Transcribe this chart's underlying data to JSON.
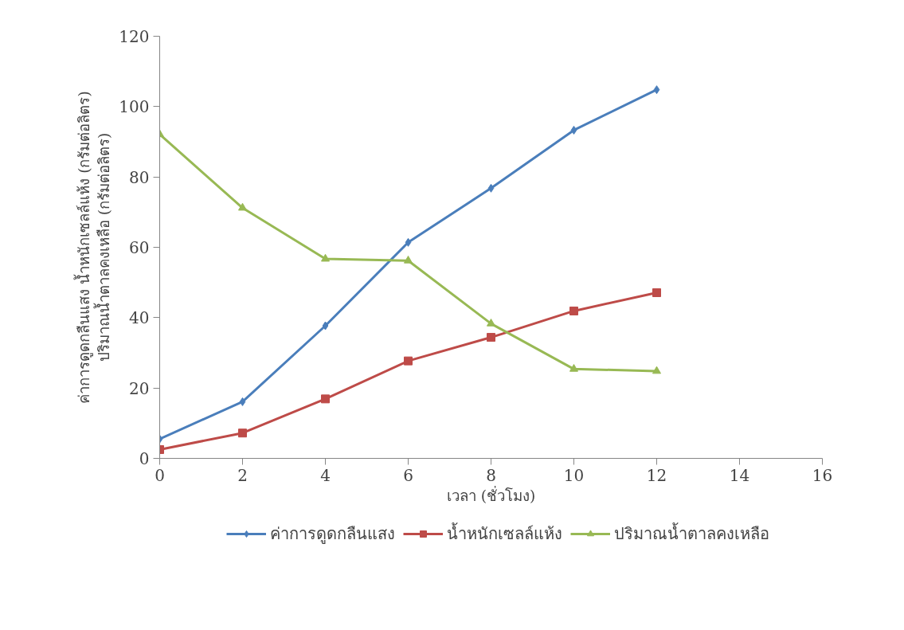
{
  "chart_data": {
    "type": "line",
    "xlabel": "เวลา (ชั่วโมง)",
    "ylabel": "ค่าการดูดกลืนแสง น้ำหนักเซลล์แห้ง (กรัมต่อลิตร)\nปริมาณน้ำตาลคงเหลือ (กรัมต่อลิตร)",
    "x": [
      0,
      2,
      4,
      6,
      8,
      10,
      12
    ],
    "series": [
      {
        "name": "ค่าการดูดกลืนแสง",
        "color": "#4a7ebb",
        "marker": "diamond",
        "values": [
          5.5,
          16.1,
          37.7,
          61.4,
          76.8,
          93.3,
          104.8
        ]
      },
      {
        "name": "น้ำหนักเซลล์แห้ง",
        "color": "#be4b48",
        "marker": "square",
        "values": [
          2.5,
          7.2,
          16.9,
          27.7,
          34.4,
          41.9,
          47.1
        ]
      },
      {
        "name": "ปริมาณน้ำตาลคงเหลือ",
        "color": "#98b954",
        "marker": "triangle",
        "values": [
          92.1,
          71.2,
          56.7,
          56.2,
          38.3,
          25.4,
          24.8
        ]
      }
    ],
    "xlim": [
      0,
      16
    ],
    "xticks": [
      0,
      2,
      4,
      6,
      8,
      10,
      12,
      14,
      16
    ],
    "ylim": [
      0,
      120
    ],
    "yticks": [
      0,
      20,
      40,
      60,
      80,
      100,
      120
    ],
    "grid": false,
    "legend": "bottom",
    "line_style": "solid"
  }
}
